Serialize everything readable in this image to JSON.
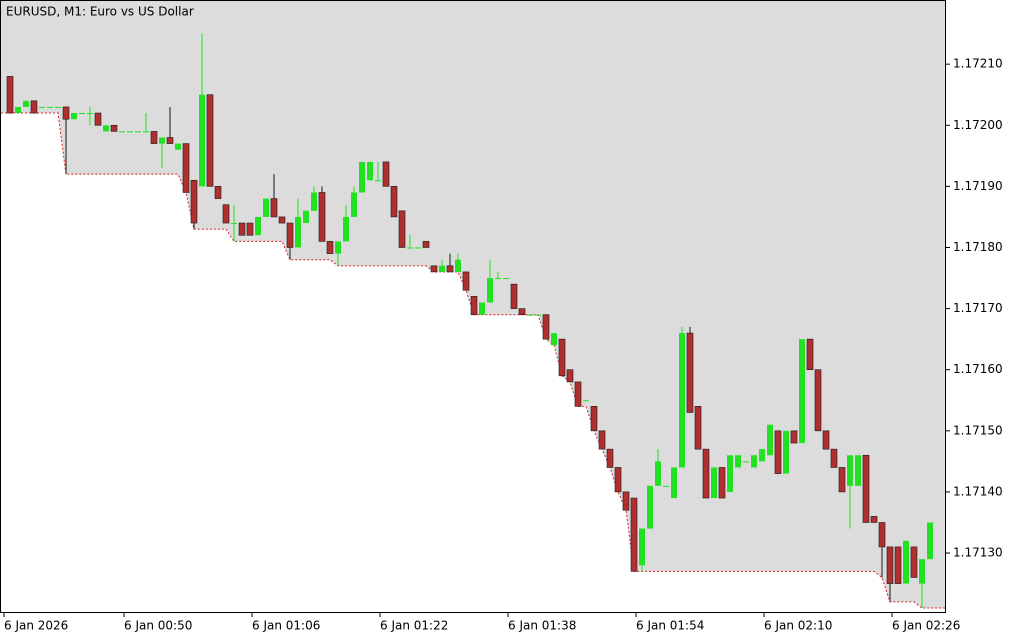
{
  "chart_data": {
    "type": "candlestick",
    "title": "EURUSD, M1:  Euro vs US Dollar",
    "x": [
      "6 Jan 2026",
      null,
      null,
      null,
      null,
      null,
      null,
      null,
      null,
      null,
      null,
      null,
      null,
      null,
      null,
      "6 Jan 00:50",
      null,
      null,
      null,
      null,
      null,
      null,
      null,
      null,
      null,
      null,
      null,
      null,
      null,
      null,
      null,
      "6 Jan 01:06",
      null,
      null,
      null,
      null,
      null,
      null,
      null,
      null,
      null,
      null,
      null,
      null,
      null,
      null,
      null,
      "6 Jan 01:22",
      null,
      null,
      null,
      null,
      null,
      null,
      null,
      null,
      null,
      null,
      null,
      null,
      null,
      null,
      null,
      "6 Jan 01:38",
      null,
      null,
      null,
      null,
      null,
      null,
      null,
      null,
      null,
      null,
      null,
      null,
      null,
      null,
      null,
      "6 Jan 01:54",
      null,
      null,
      null,
      null,
      null,
      null,
      null,
      null,
      null,
      null,
      null,
      null,
      null,
      null,
      null,
      "6 Jan 02:10",
      null,
      null,
      null,
      null,
      null,
      null,
      null,
      null,
      null,
      null,
      null,
      null,
      null,
      null,
      null,
      "6 Jan 02:26",
      null,
      null,
      null,
      null
    ],
    "open": [
      1.17208,
      1.17202,
      1.17203,
      1.17204,
      1.17203,
      1.17203,
      1.17203,
      1.17203,
      1.17201,
      1.17202,
      1.17202,
      1.17202,
      1.17199,
      1.172,
      1.17199,
      1.17199,
      1.17199,
      1.17199,
      1.17199,
      1.17197,
      1.17198,
      1.17196,
      1.17197,
      1.17191,
      1.1719,
      1.17205,
      1.1719,
      1.17187,
      1.17184,
      1.17184,
      1.17184,
      1.17182,
      1.17185,
      1.17188,
      1.17185,
      1.17184,
      1.1718,
      1.17184,
      1.17186,
      1.17189,
      1.17181,
      1.17179,
      1.17181,
      1.17185,
      1.17189,
      1.17191,
      1.17191,
      1.17194,
      1.1719,
      1.17186,
      1.1718,
      1.1718,
      1.17181,
      1.17177,
      1.17176,
      1.17177,
      1.17176,
      1.17176,
      1.17172,
      1.17169,
      1.17171,
      1.17175,
      1.17175,
      1.17174,
      1.1717,
      1.17169,
      1.17169,
      1.17169,
      1.17164,
      1.17165,
      1.1716,
      1.17158,
      1.17155,
      1.17154,
      1.1715,
      1.17147,
      1.17144,
      1.1714,
      1.17139,
      1.17128,
      1.17134,
      1.17141,
      1.17141,
      1.17139,
      1.17144,
      1.17166,
      1.17154,
      1.17147,
      1.17139,
      1.17144,
      1.1714,
      1.17144,
      1.17145,
      1.17144,
      1.17145,
      1.17146,
      1.1715,
      1.17143,
      1.1715,
      1.17148,
      1.17165,
      1.1716,
      1.1715,
      1.17147,
      1.17144,
      1.17141,
      1.17141,
      1.17146,
      1.17136,
      1.17135,
      1.17131,
      1.17131,
      1.17125,
      1.17131,
      1.17125,
      1.17129
    ],
    "high": [
      1.17208,
      1.17203,
      1.17204,
      1.17204,
      1.17203,
      1.17203,
      1.17203,
      1.17203,
      1.17202,
      1.17202,
      1.17203,
      1.17202,
      1.172,
      1.172,
      1.17199,
      1.17199,
      1.17199,
      1.17202,
      1.17199,
      1.17198,
      1.17203,
      1.17197,
      1.17197,
      1.17191,
      1.17215,
      1.17205,
      1.1719,
      1.17187,
      1.17187,
      1.17184,
      1.17184,
      1.17185,
      1.17188,
      1.17192,
      1.17185,
      1.17184,
      1.17188,
      1.17186,
      1.1719,
      1.1719,
      1.17181,
      1.17181,
      1.17187,
      1.1719,
      1.17194,
      1.17194,
      1.17194,
      1.17194,
      1.1719,
      1.17186,
      1.17182,
      1.1718,
      1.17181,
      1.17177,
      1.17178,
      1.17179,
      1.17179,
      1.17176,
      1.17172,
      1.17171,
      1.17178,
      1.17176,
      1.17175,
      1.17174,
      1.1717,
      1.17169,
      1.17169,
      1.17169,
      1.17166,
      1.17165,
      1.1716,
      1.17158,
      1.17155,
      1.17154,
      1.1715,
      1.17147,
      1.17144,
      1.1714,
      1.17139,
      1.17134,
      1.17141,
      1.17147,
      1.17141,
      1.17144,
      1.17167,
      1.17167,
      1.17154,
      1.17147,
      1.17144,
      1.17144,
      1.17146,
      1.17146,
      1.17145,
      1.17146,
      1.17147,
      1.17151,
      1.1715,
      1.1715,
      1.1715,
      1.17165,
      1.17165,
      1.1716,
      1.1715,
      1.17147,
      1.17144,
      1.17146,
      1.17146,
      1.17146,
      1.17136,
      1.17135,
      1.17131,
      1.17131,
      1.17132,
      1.17131,
      1.17129,
      1.17135
    ],
    "low": [
      1.17202,
      1.17202,
      1.17203,
      1.17202,
      1.17203,
      1.17203,
      1.17203,
      1.17192,
      1.17201,
      1.17202,
      1.172,
      1.172,
      1.17199,
      1.17199,
      1.17199,
      1.17199,
      1.17199,
      1.17199,
      1.17197,
      1.17193,
      1.17197,
      1.17196,
      1.17189,
      1.17183,
      1.1719,
      1.1719,
      1.17188,
      1.17184,
      1.17181,
      1.17182,
      1.17182,
      1.17182,
      1.17185,
      1.17185,
      1.17184,
      1.17178,
      1.1718,
      1.17184,
      1.17186,
      1.17181,
      1.17179,
      1.17177,
      1.17181,
      1.17185,
      1.17189,
      1.17191,
      1.17191,
      1.1719,
      1.17185,
      1.1718,
      1.1718,
      1.1718,
      1.1718,
      1.17176,
      1.17176,
      1.17176,
      1.17176,
      1.17173,
      1.17169,
      1.17169,
      1.17171,
      1.17175,
      1.17175,
      1.1717,
      1.17169,
      1.17169,
      1.17169,
      1.17165,
      1.17164,
      1.17159,
      1.17158,
      1.17154,
      1.17155,
      1.1715,
      1.17147,
      1.17144,
      1.1714,
      1.17137,
      1.17127,
      1.17127,
      1.17134,
      1.17141,
      1.17141,
      1.17139,
      1.17144,
      1.17153,
      1.17147,
      1.17139,
      1.17139,
      1.17139,
      1.1714,
      1.17144,
      1.17145,
      1.17144,
      1.17145,
      1.17146,
      1.17143,
      1.17143,
      1.17148,
      1.17148,
      1.1716,
      1.1715,
      1.17147,
      1.17144,
      1.1714,
      1.17134,
      1.17141,
      1.17135,
      1.17135,
      1.17126,
      1.17122,
      1.17125,
      1.17125,
      1.17126,
      1.17121,
      1.17129
    ],
    "close": [
      1.17202,
      1.17203,
      1.17204,
      1.17202,
      1.17203,
      1.17203,
      1.17203,
      1.17201,
      1.17202,
      1.17202,
      1.17202,
      1.172,
      1.172,
      1.17199,
      1.17199,
      1.17199,
      1.17199,
      1.17199,
      1.17197,
      1.17198,
      1.17197,
      1.17197,
      1.17189,
      1.17184,
      1.17205,
      1.1719,
      1.17188,
      1.17184,
      1.17184,
      1.17182,
      1.17182,
      1.17185,
      1.17188,
      1.17185,
      1.17184,
      1.1718,
      1.17185,
      1.17186,
      1.17189,
      1.17181,
      1.17179,
      1.17181,
      1.17185,
      1.17189,
      1.17194,
      1.17194,
      1.17191,
      1.1719,
      1.17185,
      1.1718,
      1.1718,
      1.1718,
      1.1718,
      1.17176,
      1.17177,
      1.17176,
      1.17178,
      1.17173,
      1.17169,
      1.17171,
      1.17175,
      1.17175,
      1.17175,
      1.1717,
      1.17169,
      1.17169,
      1.17169,
      1.17165,
      1.17166,
      1.17159,
      1.17158,
      1.17154,
      1.17155,
      1.1715,
      1.17147,
      1.17144,
      1.1714,
      1.17137,
      1.17127,
      1.17134,
      1.17141,
      1.17145,
      1.17141,
      1.17144,
      1.17166,
      1.17153,
      1.17147,
      1.17139,
      1.17144,
      1.17139,
      1.17146,
      1.17146,
      1.17145,
      1.17146,
      1.17147,
      1.17151,
      1.17143,
      1.1715,
      1.17148,
      1.17165,
      1.1716,
      1.1715,
      1.17147,
      1.17144,
      1.1714,
      1.17146,
      1.17146,
      1.17135,
      1.17135,
      1.17131,
      1.17125,
      1.17125,
      1.17132,
      1.17126,
      1.17129,
      1.17135
    ],
    "up_color": "#22e022",
    "down_color": "#b03030",
    "ylim": [
      1.1712035,
      1.172205
    ],
    "yticks": [
      {
        "value": 1.1713,
        "label": "1.17130"
      },
      {
        "value": 1.1714,
        "label": "1.17140"
      },
      {
        "value": 1.1715,
        "label": "1.17150"
      },
      {
        "value": 1.1716,
        "label": "1.17160"
      },
      {
        "value": 1.1717,
        "label": "1.17170"
      },
      {
        "value": 1.1718,
        "label": "1.17180"
      },
      {
        "value": 1.1719,
        "label": "1.17190"
      },
      {
        "value": 1.172,
        "label": "1.17200"
      },
      {
        "value": 1.1721,
        "label": "1.17210"
      }
    ]
  }
}
